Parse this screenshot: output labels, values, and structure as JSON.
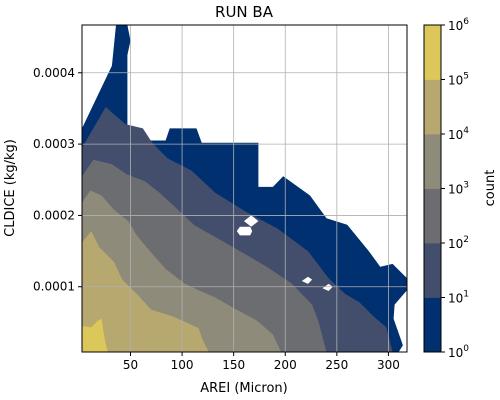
{
  "chart_data": {
    "type": "heatmap",
    "subtype": "filled-contour",
    "title": "RUN BA",
    "xlabel": "AREI (Micron)",
    "ylabel": "CLDICE (kg/kg)",
    "xlim": [
      3,
      318
    ],
    "ylim": [
      8.5e-06,
      0.000467
    ],
    "x_ticks": [
      50,
      100,
      150,
      200,
      250,
      300
    ],
    "x_tick_labels": [
      "50",
      "100",
      "150",
      "200",
      "250",
      "300"
    ],
    "y_ticks": [
      0.0001,
      0.0002,
      0.0003,
      0.0004
    ],
    "y_tick_labels": [
      "0.0001",
      "0.0002",
      "0.0003",
      "0.0004"
    ],
    "grid": true,
    "colorbar": {
      "label": "count",
      "scale": "log",
      "ticks": [
        1,
        10,
        100,
        1000,
        10000,
        100000,
        1000000
      ],
      "tick_labels": [
        "10^0",
        "10^1",
        "10^2",
        "10^3",
        "10^4",
        "10^5",
        "10^6"
      ],
      "colors": [
        "#00306f",
        "#434e6c",
        "#6b6d70",
        "#8f8b7a",
        "#b6a86f",
        "#dcc85a"
      ]
    },
    "levels": [
      {
        "min": 1,
        "max": 10,
        "color": "#00306f",
        "polygon": [
          [
            3,
            0.000322
          ],
          [
            32,
            0.00041
          ],
          [
            36,
            0.000467
          ],
          [
            47,
            0.000467
          ],
          [
            50,
            0.000445
          ],
          [
            47,
            0.000425
          ],
          [
            47,
            0.000305
          ],
          [
            84,
            0.000305
          ],
          [
            88,
            0.000322
          ],
          [
            114,
            0.000322
          ],
          [
            119,
            0.000302
          ],
          [
            174,
            0.000302
          ],
          [
            174,
            0.00024
          ],
          [
            188,
            0.00024
          ],
          [
            198,
            0.000255
          ],
          [
            224,
            0.000228
          ],
          [
            240,
            0.000196
          ],
          [
            260,
            0.000187
          ],
          [
            281,
            0.00015
          ],
          [
            292,
            0.000128
          ],
          [
            304,
            0.000132
          ],
          [
            318,
            0.000112
          ],
          [
            318,
            9.5e-05
          ],
          [
            306,
            7.5e-05
          ],
          [
            305,
            5.5e-05
          ],
          [
            314,
            1.8e-05
          ],
          [
            310,
            8.5e-06
          ],
          [
            3,
            8.5e-06
          ]
        ]
      },
      {
        "min": 10,
        "max": 100,
        "color": "#434e6c",
        "polygon": [
          [
            3,
            0.000295
          ],
          [
            26,
            0.000352
          ],
          [
            45,
            0.000328
          ],
          [
            62,
            0.000322
          ],
          [
            71,
            0.000302
          ],
          [
            86,
            0.00028
          ],
          [
            109,
            0.000263
          ],
          [
            132,
            0.000232
          ],
          [
            162,
            0.000205
          ],
          [
            192,
            0.000182
          ],
          [
            222,
            0.00015
          ],
          [
            242,
            0.000112
          ],
          [
            258,
            9e-05
          ],
          [
            272,
            7.8e-05
          ],
          [
            286,
            5.8e-05
          ],
          [
            298,
            4.3e-05
          ],
          [
            304,
            8.5e-06
          ],
          [
            3,
            8.5e-06
          ]
        ]
      },
      {
        "min": 100,
        "max": 1000,
        "color": "#6b6d70",
        "polygon": [
          [
            3,
            0.000255
          ],
          [
            14,
            0.000278
          ],
          [
            32,
            0.000272
          ],
          [
            46,
            0.000258
          ],
          [
            64,
            0.000248
          ],
          [
            78,
            0.000232
          ],
          [
            96,
            0.000208
          ],
          [
            112,
            0.000186
          ],
          [
            138,
            0.000165
          ],
          [
            162,
            0.000145
          ],
          [
            182,
            0.000128
          ],
          [
            206,
            0.000105
          ],
          [
            226,
            7.5e-05
          ],
          [
            232,
            5.2e-05
          ],
          [
            240,
            8.5e-06
          ],
          [
            3,
            8.5e-06
          ]
        ]
      },
      {
        "min": 1000,
        "max": 10000,
        "color": "#8f8b7a",
        "polygon": [
          [
            3,
            0.000218
          ],
          [
            11,
            0.000235
          ],
          [
            22,
            0.000228
          ],
          [
            34,
            0.000208
          ],
          [
            48,
            0.000192
          ],
          [
            56,
            0.000172
          ],
          [
            70,
            0.000148
          ],
          [
            84,
            0.000125
          ],
          [
            102,
            0.000105
          ],
          [
            116,
            9.5e-05
          ],
          [
            132,
            8.5e-05
          ],
          [
            150,
            7e-05
          ],
          [
            172,
            5.3e-05
          ],
          [
            188,
            3.3e-05
          ],
          [
            196,
            8.5e-06
          ],
          [
            3,
            8.5e-06
          ]
        ]
      },
      {
        "min": 10000,
        "max": 100000,
        "color": "#b6a86f",
        "polygon": [
          [
            3,
            0.000162
          ],
          [
            12,
            0.000178
          ],
          [
            20,
            0.000155
          ],
          [
            34,
            0.000135
          ],
          [
            42,
            0.00011
          ],
          [
            56,
            9e-05
          ],
          [
            70,
            6.8e-05
          ],
          [
            92,
            5.8e-05
          ],
          [
            116,
            4.2e-05
          ],
          [
            120,
            2.5e-05
          ],
          [
            126,
            8.5e-06
          ],
          [
            3,
            8.5e-06
          ]
        ]
      },
      {
        "min": 100000,
        "max": 1000000,
        "color": "#dcc85a",
        "polygon": [
          [
            3,
            8.5e-06
          ],
          [
            3,
            4.5e-05
          ],
          [
            12,
            4.3e-05
          ],
          [
            18,
            5.2e-05
          ],
          [
            22,
            5.5e-05
          ],
          [
            24,
            3.5e-05
          ],
          [
            26,
            2e-05
          ],
          [
            28,
            8.5e-06
          ]
        ]
      }
    ],
    "blank_regions": [
      [
        [
          153,
          0.000178
        ],
        [
          156,
          0.000184
        ],
        [
          166,
          0.000184
        ],
        [
          168,
          0.000178
        ],
        [
          166,
          0.000172
        ],
        [
          156,
          0.000172
        ]
      ],
      [
        [
          160,
          0.000192
        ],
        [
          167,
          0.0002
        ],
        [
          174,
          0.000192
        ],
        [
          167,
          0.000184
        ]
      ],
      [
        [
          216,
          0.000108
        ],
        [
          222,
          0.000114
        ],
        [
          226,
          0.00011
        ],
        [
          222,
          0.000104
        ]
      ],
      [
        [
          236,
          9.8e-05
        ],
        [
          242,
          0.000104
        ],
        [
          246,
          0.0001
        ],
        [
          242,
          9.4e-05
        ]
      ]
    ]
  }
}
